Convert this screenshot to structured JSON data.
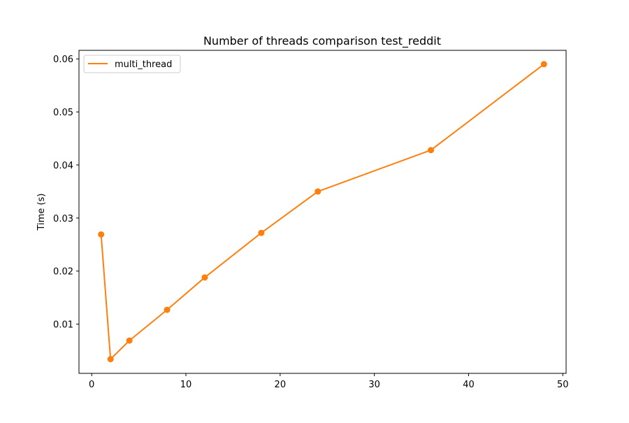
{
  "chart_data": {
    "type": "line",
    "title": "Number of threads comparison test_reddit",
    "xlabel": "",
    "ylabel": "Time (s)",
    "xlim": [
      -1.35,
      50.35
    ],
    "ylim": [
      0.00072,
      0.06161
    ],
    "xticks": [
      0,
      10,
      20,
      30,
      40,
      50
    ],
    "xtick_labels": [
      "0",
      "10",
      "20",
      "30",
      "40",
      "50"
    ],
    "yticks": [
      0.01,
      0.02,
      0.03,
      0.04,
      0.05,
      0.06
    ],
    "ytick_labels": [
      "0.01",
      "0.02",
      "0.03",
      "0.04",
      "0.05",
      "0.06"
    ],
    "grid": false,
    "legend_position": "top-left",
    "series": [
      {
        "name": "multi_thread",
        "color": "#ff7f0e",
        "marker": "circle",
        "x": [
          1,
          2,
          4,
          8,
          12,
          18,
          24,
          36,
          48
        ],
        "y": [
          0.0269,
          0.0034,
          0.0069,
          0.0127,
          0.0188,
          0.0272,
          0.035,
          0.0428,
          0.059
        ]
      }
    ]
  }
}
